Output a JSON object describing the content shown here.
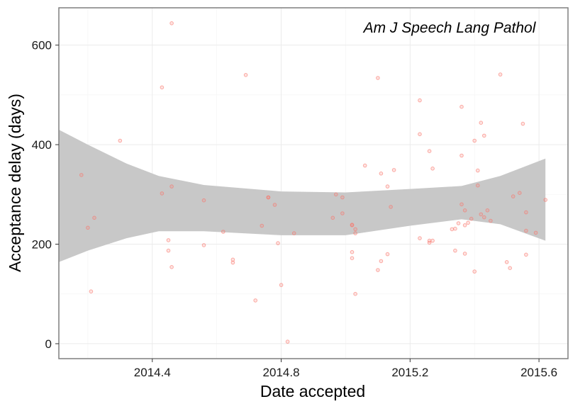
{
  "chart_data": {
    "type": "scatter",
    "title": "Am J Speech Lang Pathol",
    "xlabel": "Date accepted",
    "ylabel": "Acceptance delay (days)",
    "xlim": [
      2014.11,
      2015.69
    ],
    "ylim": [
      -30,
      675
    ],
    "grid": true,
    "x_ticks": [
      2014.4,
      2014.8,
      2015.2,
      2015.6
    ],
    "x_tick_labels": [
      "2014.4",
      "2014.8",
      "2015.2",
      "2015.6"
    ],
    "y_ticks": [
      0,
      200,
      400,
      600
    ],
    "y_tick_labels": [
      "0",
      "200",
      "400",
      "600"
    ],
    "colors": {
      "points": "#f8766d",
      "band": "#c8c8c8",
      "panel_border": "#7f7f7f",
      "grid_major": "#ebebeb",
      "grid_minor": "#f5f5f5"
    },
    "points": [
      {
        "x": 2014.18,
        "y": 339
      },
      {
        "x": 2014.2,
        "y": 233
      },
      {
        "x": 2014.21,
        "y": 105
      },
      {
        "x": 2014.22,
        "y": 253
      },
      {
        "x": 2014.3,
        "y": 408
      },
      {
        "x": 2014.43,
        "y": 515
      },
      {
        "x": 2014.43,
        "y": 302
      },
      {
        "x": 2014.45,
        "y": 208
      },
      {
        "x": 2014.45,
        "y": 187
      },
      {
        "x": 2014.46,
        "y": 316
      },
      {
        "x": 2014.46,
        "y": 154
      },
      {
        "x": 2014.46,
        "y": 644
      },
      {
        "x": 2014.56,
        "y": 288
      },
      {
        "x": 2014.56,
        "y": 198
      },
      {
        "x": 2014.62,
        "y": 225
      },
      {
        "x": 2014.65,
        "y": 169
      },
      {
        "x": 2014.65,
        "y": 163
      },
      {
        "x": 2014.69,
        "y": 540
      },
      {
        "x": 2014.72,
        "y": 87
      },
      {
        "x": 2014.74,
        "y": 237
      },
      {
        "x": 2014.76,
        "y": 294
      },
      {
        "x": 2014.76,
        "y": 294
      },
      {
        "x": 2014.78,
        "y": 279
      },
      {
        "x": 2014.79,
        "y": 202
      },
      {
        "x": 2014.8,
        "y": 118
      },
      {
        "x": 2014.82,
        "y": 4
      },
      {
        "x": 2014.84,
        "y": 222
      },
      {
        "x": 2014.96,
        "y": 253
      },
      {
        "x": 2014.97,
        "y": 300
      },
      {
        "x": 2014.99,
        "y": 294
      },
      {
        "x": 2014.99,
        "y": 262
      },
      {
        "x": 2015.02,
        "y": 239
      },
      {
        "x": 2015.02,
        "y": 238
      },
      {
        "x": 2015.02,
        "y": 184
      },
      {
        "x": 2015.02,
        "y": 172
      },
      {
        "x": 2015.03,
        "y": 230
      },
      {
        "x": 2015.03,
        "y": 222
      },
      {
        "x": 2015.03,
        "y": 100
      },
      {
        "x": 2015.06,
        "y": 358
      },
      {
        "x": 2015.1,
        "y": 534
      },
      {
        "x": 2015.1,
        "y": 148
      },
      {
        "x": 2015.11,
        "y": 342
      },
      {
        "x": 2015.11,
        "y": 166
      },
      {
        "x": 2015.13,
        "y": 316
      },
      {
        "x": 2015.13,
        "y": 180
      },
      {
        "x": 2015.14,
        "y": 275
      },
      {
        "x": 2015.15,
        "y": 349
      },
      {
        "x": 2015.23,
        "y": 489
      },
      {
        "x": 2015.23,
        "y": 421
      },
      {
        "x": 2015.23,
        "y": 212
      },
      {
        "x": 2015.26,
        "y": 387
      },
      {
        "x": 2015.26,
        "y": 207
      },
      {
        "x": 2015.26,
        "y": 203
      },
      {
        "x": 2015.27,
        "y": 352
      },
      {
        "x": 2015.27,
        "y": 207
      },
      {
        "x": 2015.33,
        "y": 230
      },
      {
        "x": 2015.34,
        "y": 231
      },
      {
        "x": 2015.34,
        "y": 187
      },
      {
        "x": 2015.35,
        "y": 242
      },
      {
        "x": 2015.36,
        "y": 476
      },
      {
        "x": 2015.36,
        "y": 378
      },
      {
        "x": 2015.36,
        "y": 280
      },
      {
        "x": 2015.37,
        "y": 268
      },
      {
        "x": 2015.37,
        "y": 181
      },
      {
        "x": 2015.37,
        "y": 238
      },
      {
        "x": 2015.38,
        "y": 243
      },
      {
        "x": 2015.39,
        "y": 251
      },
      {
        "x": 2015.4,
        "y": 408
      },
      {
        "x": 2015.4,
        "y": 145
      },
      {
        "x": 2015.41,
        "y": 348
      },
      {
        "x": 2015.41,
        "y": 318
      },
      {
        "x": 2015.42,
        "y": 444
      },
      {
        "x": 2015.42,
        "y": 260
      },
      {
        "x": 2015.43,
        "y": 418
      },
      {
        "x": 2015.43,
        "y": 254
      },
      {
        "x": 2015.44,
        "y": 268
      },
      {
        "x": 2015.45,
        "y": 247
      },
      {
        "x": 2015.48,
        "y": 541
      },
      {
        "x": 2015.5,
        "y": 164
      },
      {
        "x": 2015.51,
        "y": 152
      },
      {
        "x": 2015.52,
        "y": 296
      },
      {
        "x": 2015.54,
        "y": 303
      },
      {
        "x": 2015.55,
        "y": 442
      },
      {
        "x": 2015.56,
        "y": 264
      },
      {
        "x": 2015.56,
        "y": 227
      },
      {
        "x": 2015.56,
        "y": 179
      },
      {
        "x": 2015.59,
        "y": 223
      },
      {
        "x": 2015.62,
        "y": 289
      }
    ],
    "smooth_band": [
      {
        "x": 2014.11,
        "lower": 164,
        "upper": 430
      },
      {
        "x": 2014.2,
        "lower": 187,
        "upper": 400
      },
      {
        "x": 2014.32,
        "lower": 212,
        "upper": 362
      },
      {
        "x": 2014.42,
        "lower": 226,
        "upper": 337
      },
      {
        "x": 2014.56,
        "lower": 226,
        "upper": 319
      },
      {
        "x": 2014.8,
        "lower": 218,
        "upper": 306
      },
      {
        "x": 2015.0,
        "lower": 218,
        "upper": 304
      },
      {
        "x": 2015.2,
        "lower": 237,
        "upper": 311
      },
      {
        "x": 2015.36,
        "lower": 250,
        "upper": 317
      },
      {
        "x": 2015.48,
        "lower": 240,
        "upper": 337
      },
      {
        "x": 2015.62,
        "lower": 207,
        "upper": 372
      }
    ]
  }
}
